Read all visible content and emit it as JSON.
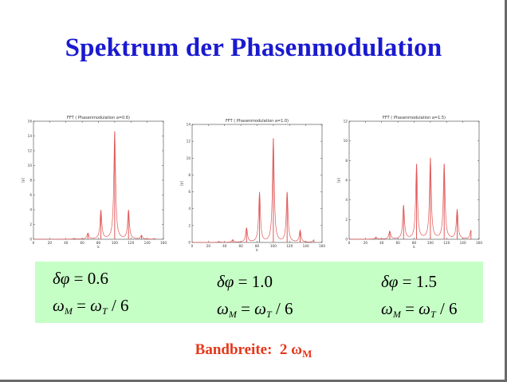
{
  "slide": {
    "title": "Spektrum der Phasenmodulation",
    "bandwidth": {
      "label": "Bandbreite:",
      "value": "2",
      "omega": "ω",
      "subscript": "M"
    }
  },
  "params": [
    {
      "delta_sym": "δφ",
      "delta_eq": " = ",
      "delta_val": "0.6",
      "omega_left": "ω",
      "omega_left_sub": "M",
      "omega_eq": " = ",
      "omega_right": "ω",
      "omega_right_sub": "T",
      "omega_div": " / 6"
    },
    {
      "delta_sym": "δφ",
      "delta_eq": " = ",
      "delta_val": "1.0",
      "omega_left": "ω",
      "omega_left_sub": "M",
      "omega_eq": " = ",
      "omega_right": "ω",
      "omega_right_sub": "T",
      "omega_div": " / 6"
    },
    {
      "delta_sym": "δφ",
      "delta_eq": " = ",
      "delta_val": "1.5",
      "omega_left": "ω",
      "omega_left_sub": "M",
      "omega_eq": " = ",
      "omega_right": "ω",
      "omega_right_sub": "T",
      "omega_div": " / 6"
    }
  ],
  "chart_data": [
    {
      "type": "line",
      "title": "FFT ( Phasenmodulation a=0.6)",
      "xlabel": "k",
      "ylabel": "|y|",
      "xlim": [
        0,
        160
      ],
      "ylim": [
        0,
        16
      ],
      "xticks": [
        "0",
        "20",
        "40",
        "60",
        "80",
        "100",
        "120",
        "140",
        "160"
      ],
      "yticks": [
        "0",
        "2",
        "4",
        "6",
        "8",
        "10",
        "12",
        "14",
        "16"
      ],
      "peaks": [
        {
          "x": 50,
          "y": 0.1
        },
        {
          "x": 67,
          "y": 0.8
        },
        {
          "x": 83,
          "y": 3.9
        },
        {
          "x": 100,
          "y": 14.6
        },
        {
          "x": 117,
          "y": 3.9
        },
        {
          "x": 133,
          "y": 0.5
        },
        {
          "x": 150,
          "y": 0.1
        }
      ],
      "grid": false,
      "color": "#e05656"
    },
    {
      "type": "line",
      "title": "FFT ( Phasenmodulation a=1.0)",
      "xlabel": "k",
      "ylabel": "|y|",
      "xlim": [
        0,
        160
      ],
      "ylim": [
        0,
        14
      ],
      "xticks": [
        "0",
        "20",
        "40",
        "60",
        "80",
        "100",
        "120",
        "140",
        "160"
      ],
      "yticks": [
        "0",
        "2",
        "4",
        "6",
        "8",
        "10",
        "12",
        "14"
      ],
      "peaks": [
        {
          "x": 33,
          "y": 0.1
        },
        {
          "x": 50,
          "y": 0.3
        },
        {
          "x": 67,
          "y": 1.7
        },
        {
          "x": 83,
          "y": 5.9
        },
        {
          "x": 100,
          "y": 12.3
        },
        {
          "x": 117,
          "y": 5.9
        },
        {
          "x": 133,
          "y": 1.4
        },
        {
          "x": 150,
          "y": 0.3
        }
      ],
      "grid": false,
      "color": "#e05656"
    },
    {
      "type": "line",
      "title": "FFT ( Phasenmodulation a=1.5)",
      "xlabel": "k",
      "ylabel": "|y|",
      "xlim": [
        0,
        160
      ],
      "ylim": [
        0,
        12
      ],
      "xticks": [
        "0",
        "20",
        "40",
        "60",
        "80",
        "100",
        "120",
        "140",
        "160"
      ],
      "yticks": [
        "0",
        "2",
        "4",
        "6",
        "8",
        "10",
        "12"
      ],
      "peaks": [
        {
          "x": 33,
          "y": 0.2
        },
        {
          "x": 50,
          "y": 0.8
        },
        {
          "x": 67,
          "y": 3.4
        },
        {
          "x": 83,
          "y": 7.6
        },
        {
          "x": 100,
          "y": 8.2
        },
        {
          "x": 117,
          "y": 7.6
        },
        {
          "x": 133,
          "y": 3.0
        },
        {
          "x": 150,
          "y": 0.9
        }
      ],
      "grid": false,
      "color": "#e05656"
    }
  ]
}
